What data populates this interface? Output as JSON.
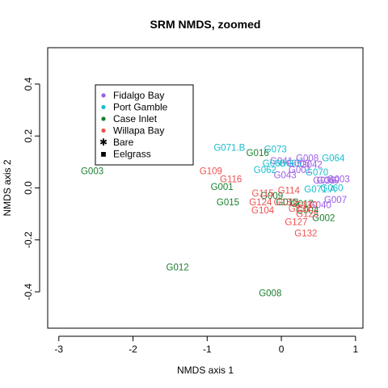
{
  "chart_data": {
    "type": "scatter",
    "title": "SRM NMDS, zoomed",
    "xlabel": "NMDS axis 1",
    "ylabel": "NMDS axis 2",
    "xlim": [
      -3.15,
      1.1
    ],
    "ylim": [
      -0.54,
      0.54
    ],
    "xticks": [
      -3,
      -2,
      -1,
      0,
      1
    ],
    "yticks": [
      -0.4,
      -0.2,
      0.0,
      0.2,
      0.4
    ],
    "ytick_labels": [
      "-0.4",
      "-0.2",
      "0.0",
      "0.2",
      "0.4"
    ],
    "grid": false,
    "legend_position": "top-left",
    "legend": {
      "sites": [
        {
          "name": "Fidalgo Bay",
          "color": "#9b5de5"
        },
        {
          "name": "Port Gamble",
          "color": "#17becf"
        },
        {
          "name": "Case Inlet",
          "color": "#1a7f2e"
        },
        {
          "name": "Willapa Bay",
          "color": "#f05050"
        }
      ],
      "habitats": [
        {
          "name": "Bare",
          "symbol": "✱"
        },
        {
          "name": "Eelgrass",
          "symbol": "■"
        }
      ]
    },
    "series": [
      {
        "name": "Fidalgo Bay",
        "color": "#9b5de5",
        "points": [
          {
            "label": "G008",
            "x": 0.35,
            "y": 0.115
          },
          {
            "label": "G042",
            "x": 0.4,
            "y": 0.09
          },
          {
            "label": "G043",
            "x": 0.05,
            "y": 0.05
          },
          {
            "label": "G003",
            "x": 0.77,
            "y": 0.035
          },
          {
            "label": "G007",
            "x": 0.73,
            "y": -0.045
          },
          {
            "label": "G040",
            "x": 0.52,
            "y": -0.065
          },
          {
            "label": "G039",
            "x": 0.58,
            "y": 0.03
          },
          {
            "label": "G001",
            "x": 0.25,
            "y": 0.07
          },
          {
            "label": "G006",
            "x": 0.23,
            "y": 0.095
          },
          {
            "label": "G041",
            "x": 0.0,
            "y": 0.105
          },
          {
            "label": "G069",
            "x": 0.63,
            "y": 0.03
          }
        ]
      },
      {
        "name": "Port Gamble",
        "color": "#17becf",
        "points": [
          {
            "label": "G071.B",
            "x": -0.7,
            "y": 0.155
          },
          {
            "label": "G073",
            "x": -0.08,
            "y": 0.15
          },
          {
            "label": "G064",
            "x": 0.7,
            "y": 0.115
          },
          {
            "label": "G070",
            "x": 0.48,
            "y": 0.06
          },
          {
            "label": "G060",
            "x": 0.68,
            "y": 0.0
          },
          {
            "label": "G071.A",
            "x": 0.52,
            "y": -0.005
          },
          {
            "label": "G062",
            "x": -0.22,
            "y": 0.07
          },
          {
            "label": "G065",
            "x": 0.12,
            "y": 0.095
          },
          {
            "label": "G066",
            "x": -0.1,
            "y": 0.095
          }
        ]
      },
      {
        "name": "Case Inlet",
        "color": "#1a7f2e",
        "points": [
          {
            "label": "G003",
            "x": -2.55,
            "y": 0.065
          },
          {
            "label": "G016",
            "x": -0.32,
            "y": 0.135
          },
          {
            "label": "G001",
            "x": -0.8,
            "y": 0.005
          },
          {
            "label": "G015",
            "x": -0.72,
            "y": -0.055
          },
          {
            "label": "G009",
            "x": -0.13,
            "y": -0.03
          },
          {
            "label": "G013",
            "x": 0.08,
            "y": -0.055
          },
          {
            "label": "G017",
            "x": 0.28,
            "y": -0.06
          },
          {
            "label": "G004",
            "x": 0.35,
            "y": -0.085
          },
          {
            "label": "G002",
            "x": 0.57,
            "y": -0.115
          },
          {
            "label": "G012",
            "x": -1.4,
            "y": -0.305
          },
          {
            "label": "G008",
            "x": -0.15,
            "y": -0.405
          }
        ]
      },
      {
        "name": "Willapa Bay",
        "color": "#f05050",
        "points": [
          {
            "label": "G109",
            "x": -0.95,
            "y": 0.065
          },
          {
            "label": "G116",
            "x": -0.68,
            "y": 0.035
          },
          {
            "label": "G114",
            "x": 0.1,
            "y": -0.01
          },
          {
            "label": "G115",
            "x": -0.25,
            "y": -0.02
          },
          {
            "label": "G124",
            "x": -0.28,
            "y": -0.055
          },
          {
            "label": "G104",
            "x": -0.25,
            "y": -0.085
          },
          {
            "label": "G125",
            "x": 0.35,
            "y": -0.1
          },
          {
            "label": "G127",
            "x": 0.2,
            "y": -0.13
          },
          {
            "label": "G132",
            "x": 0.33,
            "y": -0.175
          },
          {
            "label": "G131",
            "x": 0.05,
            "y": -0.055
          },
          {
            "label": "G130",
            "x": 0.33,
            "y": -0.065
          },
          {
            "label": "G137",
            "x": 0.25,
            "y": -0.08
          }
        ]
      }
    ]
  }
}
